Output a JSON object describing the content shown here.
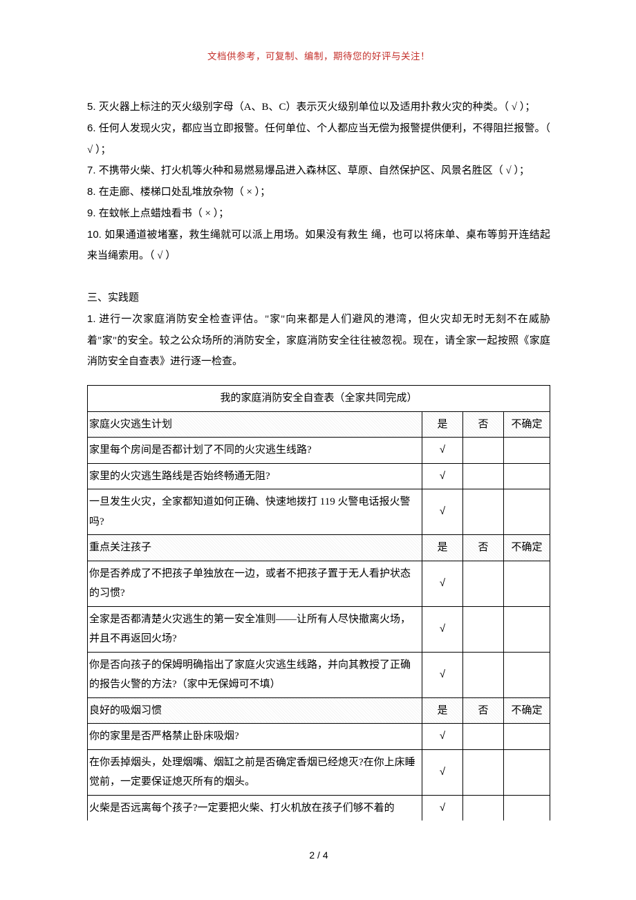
{
  "header_note": "文档供参考，可复制、编制，期待您的好评与关注！",
  "questions": [
    {
      "num": "5.",
      "text": "灭火器上标注的灭火级别字母（A、B、C）表示灭火级别单位以及适用扑救火灾的种类。（ √ ）；"
    },
    {
      "num": "6.",
      "text": "任何人发现火灾，都应当立即报警。任何单位、个人都应当无偿为报警提供便利，不得阻拦报警。（ √ ）；"
    },
    {
      "num": "7.",
      "text": "不携带火柴、打火机等火种和易燃易爆品进入森林区、草原、自然保护区、风景名胜区（ √ ）；"
    },
    {
      "num": "8.",
      "text": "在走廊、楼梯口处乱堆放杂物（ × ）；"
    },
    {
      "num": "9.",
      "text": "在蚊帐上点蜡烛看书（ × ）；"
    },
    {
      "num": "10.",
      "text": "如果通道被堵塞，救生绳就可以派上用场。如果没有救生 绳，也可以将床单、桌布等剪开连结起来当绳索用。（ √ ）"
    }
  ],
  "section3_title": "三、实践题",
  "practice_q1_num": "1.",
  "practice_q1_text": "进行一次家庭消防安全检查评估。\"家\"向来都是人们避风的港湾，但火灾却无时无刻不在威胁着\"家\"的安全。较之公众场所的消防安全，家庭消防安全往往被忽视。现在，请全家一起按照《家庭消防安全自查表》进行逐一检查。",
  "table": {
    "title": "我的家庭消防安全自查表（全家共同完成）",
    "yes": "是",
    "no": "否",
    "unsure": "不确定",
    "check": "√",
    "sections": [
      {
        "name": "家庭火灾逃生计划",
        "rows": [
          {
            "q": "家里每个房间是否都计划了不同的火灾逃生线路?",
            "yes": true
          },
          {
            "q": "家里的火灾逃生路线是否始终畅通无阻?",
            "yes": true
          },
          {
            "q": "一旦发生火灾，全家都知道如何正确、快速地拨打 119 火警电话报火警吗?",
            "yes": true
          }
        ]
      },
      {
        "name": "重点关注孩子",
        "rows": [
          {
            "q": "你是否养成了不把孩子单独放在一边，或者不把孩子置于无人看护状态的习惯?",
            "yes": true
          },
          {
            "q": "全家是否都清楚火灾逃生的第一安全准则——让所有人尽快撤离火场，并且不再返回火场?",
            "yes": true
          },
          {
            "q": "你是否向孩子的保姆明确指出了家庭火灾逃生线路，并向其教授了正确的报告火警的方法?（家中无保姆可不填）",
            "yes": true
          }
        ]
      },
      {
        "name": "良好的吸烟习惯",
        "rows": [
          {
            "q": "你的家里是否严格禁止卧床吸烟?",
            "yes": true
          },
          {
            "q": "在你丢掉烟头，处理烟嘴、烟缸之前是否确定香烟已经熄灭?在你上床睡觉前，一定要保证熄灭所有的烟头。",
            "yes": true
          },
          {
            "q": "火柴是否远离每个孩子?一定要把火柴、打火机放在孩子们够不着的",
            "yes": true,
            "last_no_bottom": true
          }
        ]
      }
    ]
  },
  "footer": "2 / 4"
}
